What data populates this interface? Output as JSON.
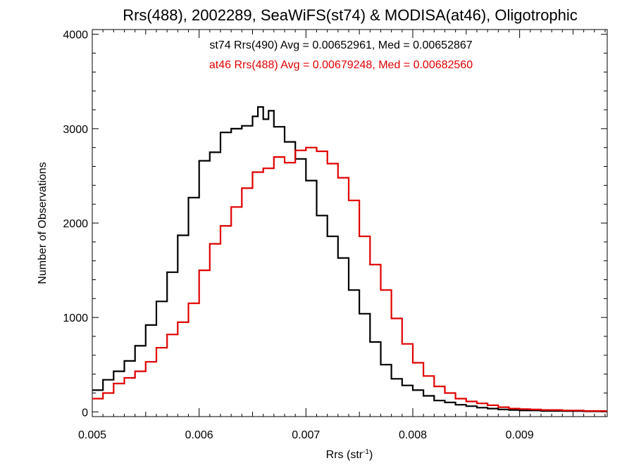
{
  "chart_data": {
    "type": "line",
    "step": true,
    "title": "Rrs(488), 2002289, SeaWiFS(st74) & MODISA(at46), Oligotrophic",
    "xlabel_main": "Rrs (str",
    "xlabel_sup": "-1",
    "xlabel_close": ")",
    "ylabel": "Number of Observations",
    "xlim": [
      0.005,
      0.00982
    ],
    "ylim": [
      -50,
      4050
    ],
    "x_ticks": [
      {
        "value": 0.005,
        "label": "0.005"
      },
      {
        "value": 0.006,
        "label": "0.006"
      },
      {
        "value": 0.007,
        "label": "0.007"
      },
      {
        "value": 0.008,
        "label": "0.008"
      },
      {
        "value": 0.009,
        "label": "0.009"
      }
    ],
    "y_ticks": [
      {
        "value": 0,
        "label": "0"
      },
      {
        "value": 1000,
        "label": "1000"
      },
      {
        "value": 2000,
        "label": "2000"
      },
      {
        "value": 3000,
        "label": "3000"
      },
      {
        "value": 4000,
        "label": "4000"
      }
    ],
    "annotations": [
      {
        "text": "st74 Rrs(490) Avg = 0.00652961, Med = 0.00652867",
        "color": "#000000"
      },
      {
        "text": "at46 Rrs(488) Avg = 0.00679248, Med = 0.00682560",
        "color": "#e00000"
      }
    ],
    "series": [
      {
        "color": "#000000",
        "x": [
          0.005,
          0.0051,
          0.0052,
          0.0053,
          0.0054,
          0.0055,
          0.0056,
          0.0057,
          0.0058,
          0.0059,
          0.006,
          0.0061,
          0.0062,
          0.0063,
          0.0064,
          0.0065,
          0.00655,
          0.0066,
          0.00665,
          0.0067,
          0.0068,
          0.0069,
          0.007,
          0.0071,
          0.0072,
          0.0073,
          0.0074,
          0.0075,
          0.0076,
          0.0077,
          0.0078,
          0.0079,
          0.008,
          0.0081,
          0.0082,
          0.0083,
          0.0084,
          0.0085,
          0.0086,
          0.0087,
          0.0088,
          0.0089,
          0.009,
          0.0092,
          0.0094,
          0.0096,
          0.0098
        ],
        "values": [
          230,
          340,
          430,
          540,
          700,
          920,
          1170,
          1480,
          1870,
          2270,
          2660,
          2750,
          2960,
          3000,
          3030,
          3130,
          3230,
          3100,
          3190,
          3020,
          2860,
          2680,
          2450,
          2080,
          1860,
          1630,
          1290,
          1040,
          740,
          500,
          350,
          280,
          230,
          170,
          120,
          100,
          75,
          60,
          45,
          35,
          25,
          20,
          15,
          10,
          8,
          6,
          5
        ]
      },
      {
        "color": "#e00000",
        "x": [
          0.005,
          0.0051,
          0.0052,
          0.0053,
          0.0054,
          0.0055,
          0.0056,
          0.0057,
          0.0058,
          0.0059,
          0.006,
          0.0061,
          0.0062,
          0.0063,
          0.0064,
          0.0065,
          0.0066,
          0.0067,
          0.0068,
          0.0069,
          0.007,
          0.0071,
          0.0072,
          0.0073,
          0.0074,
          0.0075,
          0.0076,
          0.0077,
          0.0078,
          0.0079,
          0.008,
          0.0081,
          0.0082,
          0.0083,
          0.0084,
          0.0085,
          0.0086,
          0.0087,
          0.0088,
          0.0089,
          0.009,
          0.0091,
          0.0092,
          0.0094,
          0.0096,
          0.0098
        ],
        "values": [
          140,
          200,
          300,
          360,
          430,
          530,
          680,
          820,
          950,
          1150,
          1500,
          1780,
          1970,
          2170,
          2370,
          2540,
          2580,
          2700,
          2640,
          2770,
          2800,
          2760,
          2630,
          2480,
          2240,
          1860,
          1560,
          1290,
          990,
          720,
          520,
          380,
          270,
          200,
          140,
          110,
          90,
          70,
          50,
          35,
          30,
          25,
          20,
          15,
          10,
          8
        ]
      }
    ]
  }
}
